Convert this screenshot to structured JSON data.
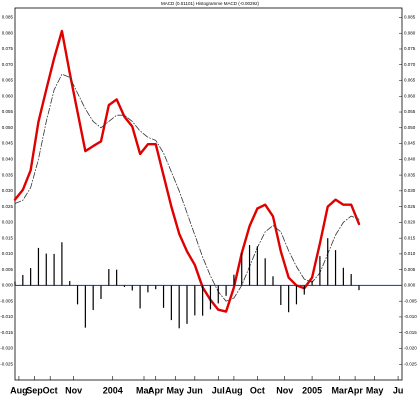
{
  "chart_data": {
    "type": "line",
    "title": "MACD (0.01101) Histogramme MACD (-0.00292)",
    "x": [
      0,
      2,
      4,
      6,
      8,
      10,
      12,
      14,
      16,
      18,
      20,
      22,
      24,
      26,
      28,
      30,
      32,
      34,
      36,
      38,
      40,
      42,
      44,
      46,
      48,
      50,
      52,
      54,
      56,
      58,
      60,
      62,
      64,
      66,
      68,
      70,
      72,
      74,
      76,
      78,
      80,
      82,
      84,
      86,
      88
    ],
    "series": [
      {
        "color": "#e00000",
        "style": "solid",
        "values": [
          0.0272,
          0.0303,
          0.0365,
          0.0519,
          0.0621,
          0.072,
          0.0807,
          0.0674,
          0.055,
          0.0426,
          0.0442,
          0.0457,
          0.0572,
          0.059,
          0.0535,
          0.0504,
          0.0417,
          0.0448,
          0.0448,
          0.0349,
          0.025,
          0.0164,
          0.0108,
          0.0065,
          -0.0006,
          -0.0046,
          -0.0077,
          -0.0083,
          -0.0006,
          0.0102,
          0.0188,
          0.0244,
          0.0256,
          0.0219,
          0.0108,
          0.0025,
          0,
          -0.0009,
          0.0025,
          0.0133,
          0.025,
          0.0272,
          0.0256,
          0.0256,
          0.0195
        ]
      },
      {
        "color": "#333333",
        "style": "dashed",
        "values": [
          0.026,
          0.027,
          0.031,
          0.04,
          0.052,
          0.062,
          0.067,
          0.066,
          0.061,
          0.056,
          0.052,
          0.05,
          0.052,
          0.054,
          0.054,
          0.052,
          0.049,
          0.047,
          0.046,
          0.042,
          0.036,
          0.03,
          0.023,
          0.016,
          0.009,
          0.003,
          -0.002,
          -0.005,
          -0.004,
          0.0,
          0.006,
          0.012,
          0.017,
          0.019,
          0.017,
          0.011,
          0.006,
          0.002,
          0.001,
          0.004,
          0.01,
          0.016,
          0.02,
          0.022,
          0.021
        ]
      },
      {
        "color": "#000000",
        "style": "histogram",
        "values": [
          0.0012,
          0.0033,
          0.0055,
          0.0119,
          0.0101,
          0.01,
          0.0137,
          0.0014,
          -0.006,
          -0.0134,
          -0.0078,
          -0.0043,
          0.0052,
          0.005,
          -0.0005,
          -0.0016,
          -0.0073,
          -0.0022,
          -0.0012,
          -0.0071,
          -0.011,
          -0.0136,
          -0.0122,
          -0.0095,
          -0.0096,
          -0.0076,
          -0.0057,
          -0.0033,
          0.0034,
          0.0102,
          0.0128,
          0.0124,
          0.0086,
          0.0029,
          -0.0062,
          -0.0085,
          -0.006,
          -0.0029,
          0.0015,
          0.0093,
          0.015,
          0.0112,
          0.0056,
          0.0036,
          -0.0015
        ]
      }
    ],
    "zero_line_color": "#3344cc",
    "xlim": [
      0,
      99
    ],
    "xticks": [
      {
        "value": 1,
        "label": "Aug"
      },
      {
        "value": 5,
        "label": "Sep"
      },
      {
        "value": 9,
        "label": "Oct"
      },
      {
        "value": 15,
        "label": "Nov"
      },
      {
        "value": 25,
        "label": "2004"
      },
      {
        "value": 33,
        "label": "Mar"
      },
      {
        "value": 36,
        "label": "Apr"
      },
      {
        "value": 41,
        "label": "May"
      },
      {
        "value": 46,
        "label": "Jun"
      },
      {
        "value": 52,
        "label": "Jul"
      },
      {
        "value": 56,
        "label": "Aug"
      },
      {
        "value": 62,
        "label": "Oct"
      },
      {
        "value": 69,
        "label": "Nov"
      },
      {
        "value": 76,
        "label": "2005"
      },
      {
        "value": 83,
        "label": "Mar"
      },
      {
        "value": 87,
        "label": "Apr"
      },
      {
        "value": 92,
        "label": "May"
      },
      {
        "value": 98,
        "label": "Ju"
      }
    ],
    "ylim": [
      -0.03,
      0.088
    ],
    "yticks": [
      {
        "value": 0.085,
        "label": "0.085"
      },
      {
        "value": 0.08,
        "label": "0.080"
      },
      {
        "value": 0.075,
        "label": "0.075"
      },
      {
        "value": 0.07,
        "label": "0.070"
      },
      {
        "value": 0.065,
        "label": "0.065"
      },
      {
        "value": 0.06,
        "label": "0.060"
      },
      {
        "value": 0.055,
        "label": "0.055"
      },
      {
        "value": 0.05,
        "label": "0.050"
      },
      {
        "value": 0.045,
        "label": "0.045"
      },
      {
        "value": 0.04,
        "label": "0.040"
      },
      {
        "value": 0.035,
        "label": "0.035"
      },
      {
        "value": 0.03,
        "label": "0.030"
      },
      {
        "value": 0.025,
        "label": "0.025"
      },
      {
        "value": 0.02,
        "label": "0.020"
      },
      {
        "value": 0.015,
        "label": "0.015"
      },
      {
        "value": 0.01,
        "label": "0.010"
      },
      {
        "value": 0.005,
        "label": "0.005"
      },
      {
        "value": 0,
        "label": "0.000"
      },
      {
        "value": -0.005,
        "label": "-0.005"
      },
      {
        "value": -0.01,
        "label": "-0.010"
      },
      {
        "value": -0.015,
        "label": "-0.015"
      },
      {
        "value": -0.02,
        "label": "-0.020"
      },
      {
        "value": -0.025,
        "label": "-0.025"
      }
    ]
  }
}
